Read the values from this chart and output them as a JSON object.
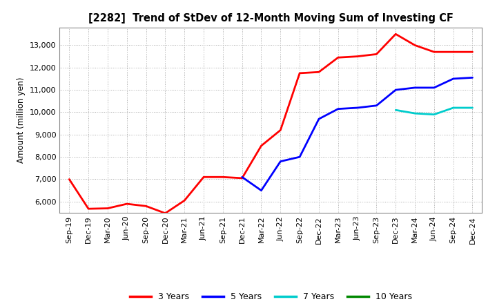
{
  "title": "[2282]  Trend of StDev of 12-Month Moving Sum of Investing CF",
  "ylabel": "Amount (million yen)",
  "background_color": "#ffffff",
  "grid_color": "#aaaaaa",
  "plot_bg_color": "#ffffff",
  "ylim": [
    5500,
    13800
  ],
  "yticks": [
    6000,
    7000,
    8000,
    9000,
    10000,
    11000,
    12000,
    13000
  ],
  "series": {
    "3 Years": {
      "color": "#ff0000",
      "data": {
        "Sep-19": 7000,
        "Dec-19": 5680,
        "Mar-20": 5700,
        "Jun-20": 5900,
        "Sep-20": 5800,
        "Dec-20": 5480,
        "Mar-21": 6050,
        "Jun-21": 7100,
        "Sep-21": 7100,
        "Dec-21": 7050,
        "Mar-22": 8500,
        "Jun-22": 9200,
        "Sep-22": 11750,
        "Dec-22": 11800,
        "Mar-23": 12450,
        "Jun-23": 12500,
        "Sep-23": 12600,
        "Dec-23": 13500,
        "Mar-24": 13000,
        "Jun-24": 12700,
        "Sep-24": 12700,
        "Dec-24": 12700
      }
    },
    "5 Years": {
      "color": "#0000ff",
      "data": {
        "Dec-21": 7100,
        "Mar-22": 6500,
        "Jun-22": 7800,
        "Sep-22": 8000,
        "Dec-22": 9700,
        "Mar-23": 10150,
        "Jun-23": 10200,
        "Sep-23": 10300,
        "Dec-23": 11000,
        "Mar-24": 11100,
        "Jun-24": 11100,
        "Sep-24": 11500,
        "Dec-24": 11550
      }
    },
    "7 Years": {
      "color": "#00cccc",
      "data": {
        "Dec-23": 10100,
        "Mar-24": 9950,
        "Jun-24": 9900,
        "Sep-24": 10200,
        "Dec-24": 10200
      }
    },
    "10 Years": {
      "color": "#008800",
      "data": {}
    }
  },
  "legend_labels": [
    "3 Years",
    "5 Years",
    "7 Years",
    "10 Years"
  ],
  "legend_colors": [
    "#ff0000",
    "#0000ff",
    "#00cccc",
    "#008800"
  ],
  "x_tick_labels": [
    "Sep-19",
    "Dec-19",
    "Mar-20",
    "Jun-20",
    "Sep-20",
    "Dec-20",
    "Mar-21",
    "Jun-21",
    "Sep-21",
    "Dec-21",
    "Mar-22",
    "Jun-22",
    "Sep-22",
    "Dec-22",
    "Mar-23",
    "Jun-23",
    "Sep-23",
    "Dec-23",
    "Mar-24",
    "Jun-24",
    "Sep-24",
    "Dec-24"
  ]
}
